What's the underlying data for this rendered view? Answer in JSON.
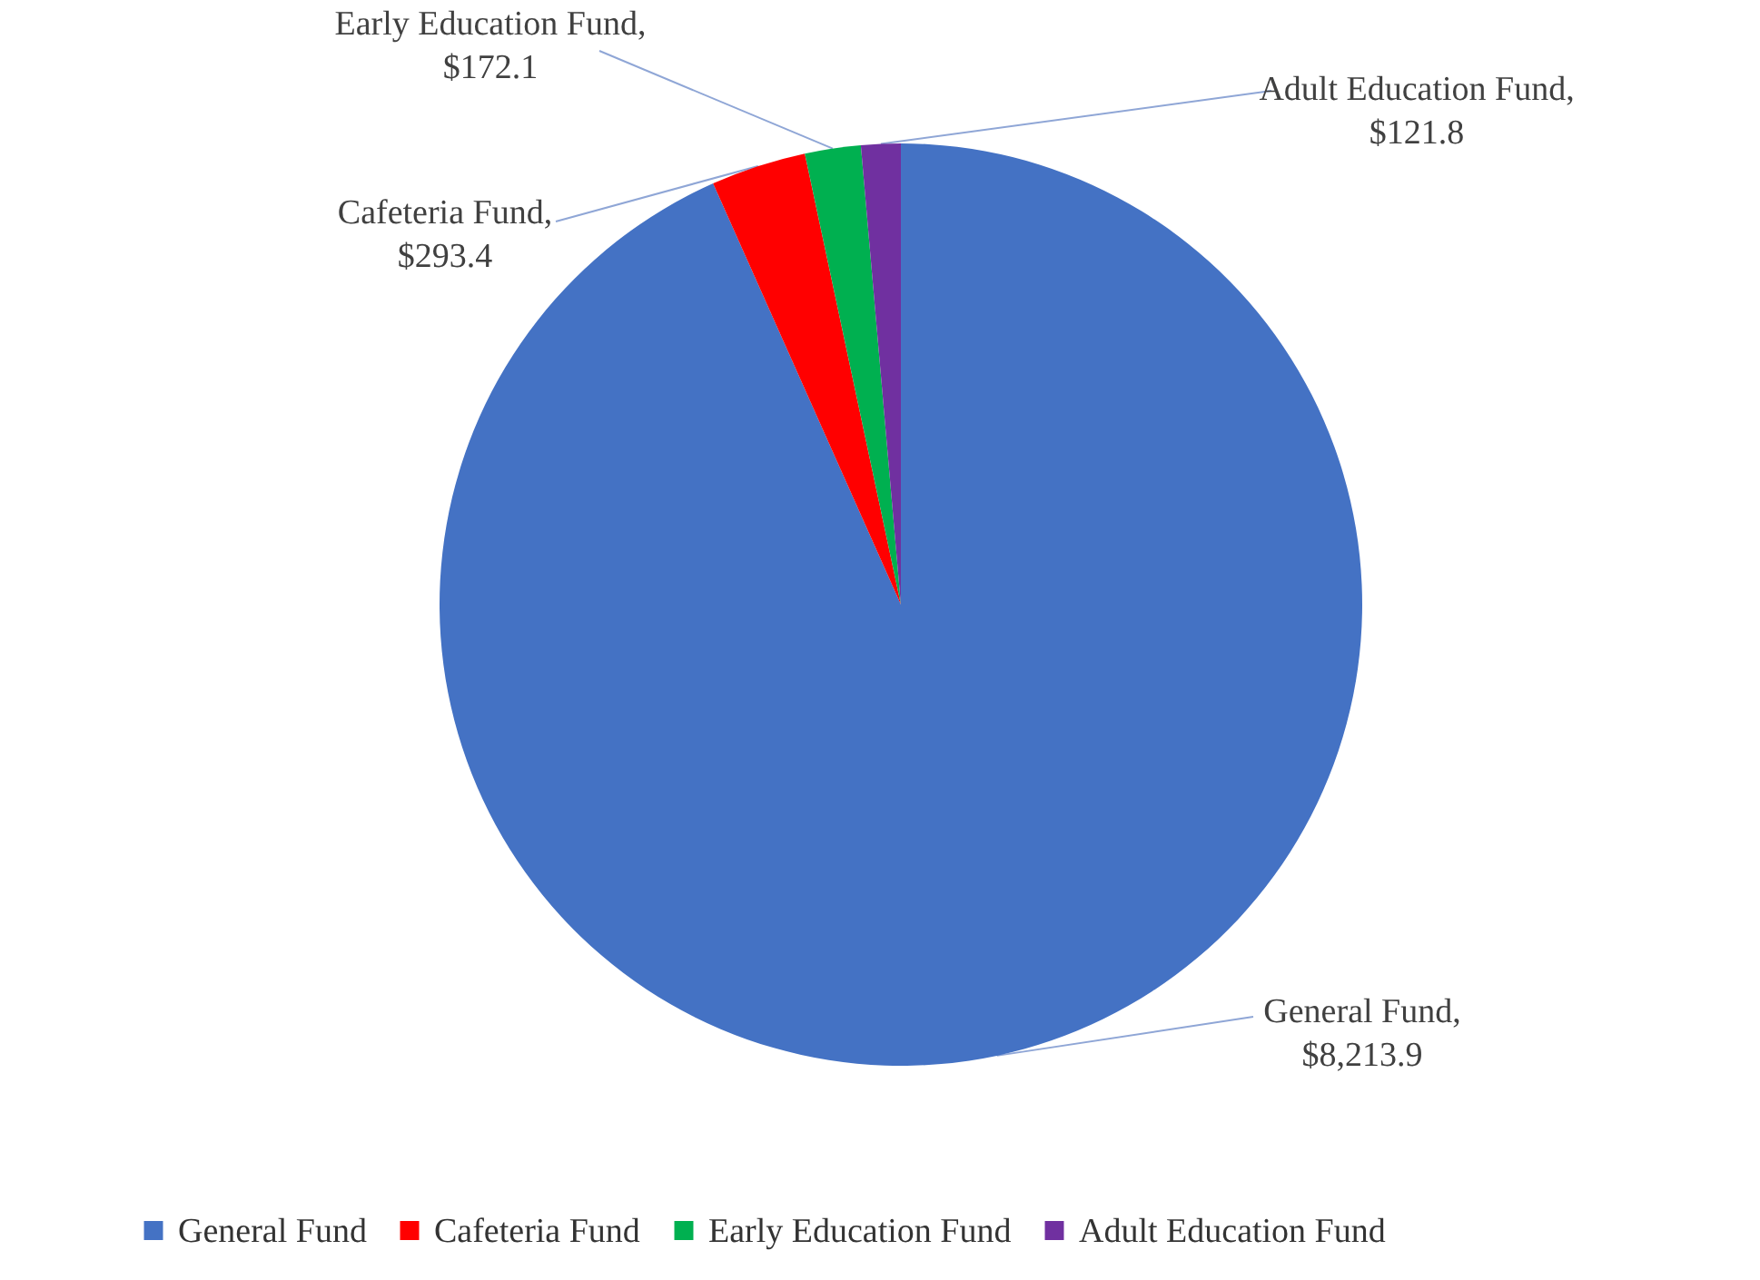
{
  "chart_data": {
    "type": "pie",
    "categories": [
      "General Fund",
      "Cafeteria Fund",
      "Early Education Fund",
      "Adult Education Fund"
    ],
    "values": [
      8213.9,
      293.4,
      172.1,
      121.8
    ],
    "value_labels": [
      "General Fund, $8,213.9",
      "Cafeteria Fund, $293.4",
      "Early Education Fund, $172.1",
      "Adult Education Fund, $121.8"
    ],
    "colors": [
      "#4472c4",
      "#ff0000",
      "#00b050",
      "#7030a0"
    ],
    "legend": "bottom"
  }
}
